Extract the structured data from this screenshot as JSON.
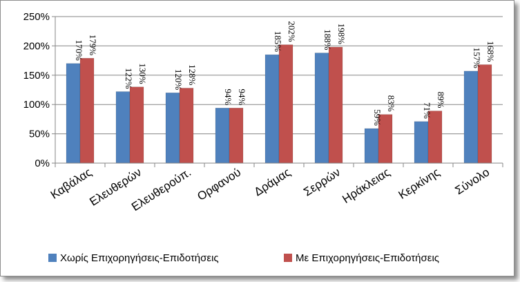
{
  "chart_data": {
    "type": "bar",
    "categories": [
      "Καβάλας",
      "Ελευθερών",
      "Ελευθερούπ.",
      "Ορφανού",
      "Δράμας",
      "Σερρών",
      "Ηράκλειας",
      "Κερκίνης",
      "Σύνολο"
    ],
    "series": [
      {
        "name": "Χωρίς Επιχορηγήσεις-Επιδοτήσεις",
        "color": "#4f81bd",
        "values": [
          170,
          122,
          120,
          94,
          185,
          188,
          59,
          71,
          157
        ],
        "labels": [
          "170%",
          "122%",
          "120%",
          "94%",
          "185%",
          "188%",
          "59%",
          "71%",
          "157%"
        ]
      },
      {
        "name": "Με Επιχορηγήσεις-Επιδοτήσεις",
        "color": "#c0504d",
        "values": [
          179,
          130,
          128,
          94,
          202,
          198,
          83,
          89,
          168
        ],
        "labels": [
          "179%",
          "130%",
          "128%",
          "94%",
          "202%",
          "198%",
          "83%",
          "89%",
          "168%"
        ]
      }
    ],
    "ylim": [
      0,
      250
    ],
    "yticks": [
      0,
      50,
      100,
      150,
      200,
      250
    ],
    "ytick_labels": [
      "0%",
      "50%",
      "100%",
      "150%",
      "200%",
      "250%"
    ],
    "title": "",
    "xlabel": "",
    "ylabel": "",
    "grid": "horizontal",
    "legend": "bottom"
  }
}
